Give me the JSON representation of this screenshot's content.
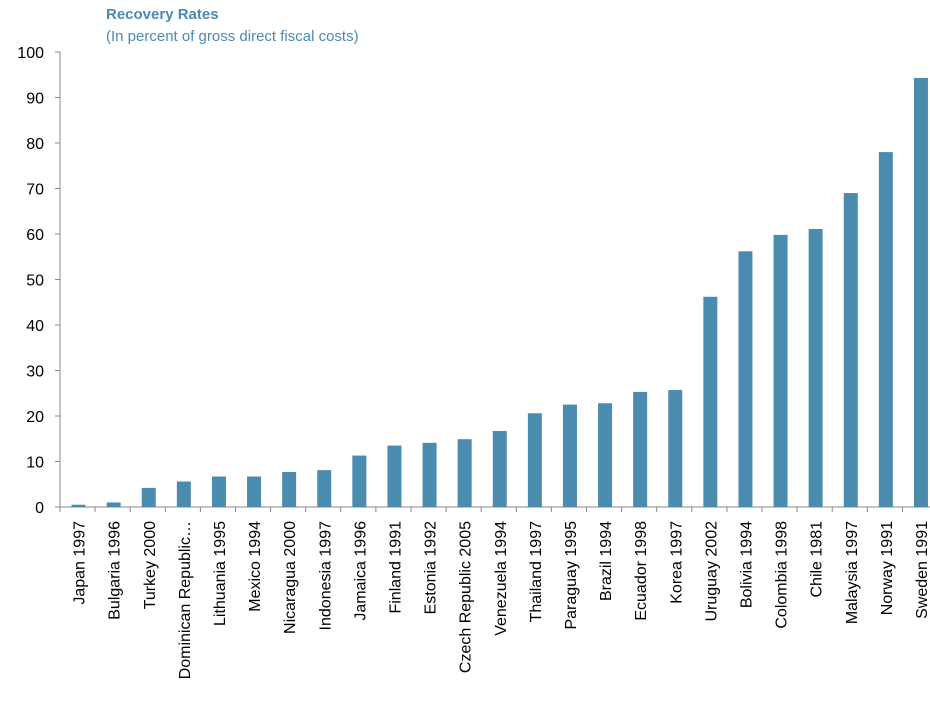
{
  "chart_data": {
    "type": "bar",
    "title": "Recovery Rates",
    "subtitle": "(In percent of gross direct fiscal costs)",
    "xlabel": "",
    "ylabel": "",
    "ylim": [
      0,
      100
    ],
    "yticks": [
      0,
      10,
      20,
      30,
      40,
      50,
      60,
      70,
      80,
      90,
      100
    ],
    "grid": false,
    "bar_color": "#4b8bb0",
    "categories": [
      "Japan 1997",
      "Bulgaria 1996",
      "Turkey 2000",
      "Dominican Republic…",
      "Lithuania 1995",
      "Mexico 1994",
      "Nicaragua 2000",
      "Indonesia 1997",
      "Jamaica 1996",
      "Finland 1991",
      "Estonia 1992",
      "Czech Republic 2005",
      "Venezuela 1994",
      "Thailand 1997",
      "Paraguay 1995",
      "Brazil 1994",
      "Ecuador 1998",
      "Korea 1997",
      "Uruguay 2002",
      "Bolivia 1994",
      "Colombia 1998",
      "Chile 1981",
      "Malaysia 1997",
      "Norway 1991",
      "Sweden 1991"
    ],
    "values": [
      0.5,
      1,
      4.2,
      5.6,
      6.7,
      6.7,
      7.7,
      8.1,
      11.3,
      13.5,
      14.1,
      14.9,
      16.7,
      20.6,
      22.5,
      22.8,
      25.3,
      25.7,
      46.2,
      56.2,
      59.8,
      61.1,
      69.0,
      78.0,
      94.3
    ]
  }
}
